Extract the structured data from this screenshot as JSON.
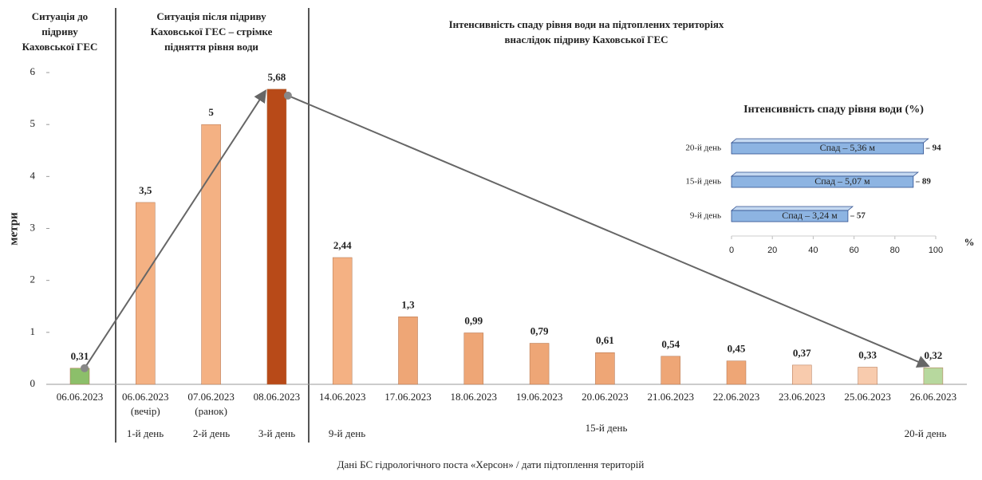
{
  "chart_data": [
    {
      "type": "bar",
      "headers": [
        [
          "Ситуація до",
          "підриву",
          "Каховської ГЕС"
        ],
        [
          "Ситуація після підриву",
          "Каховської ГЕС – стрімке",
          "підняття рівня води"
        ],
        [
          "Інтенсивність спаду рівня води на підтоплених територіях",
          "внаслідок підриву Каховської ГЕС"
        ]
      ],
      "y_label": "метри",
      "x_label": "Дані БС гідрологічного поста «Херсон» / дати підтоплення територій",
      "categories": [
        "06.06.2023",
        "06.06.2023",
        "07.06.2023",
        "08.06.2023",
        "14.06.2023",
        "17.06.2023",
        "18.06.2023",
        "19.06.2023",
        "20.06.2023",
        "21.06.2023",
        "22.06.2023",
        "23.06.2023",
        "25.06.2023",
        "26.06.2023"
      ],
      "category_notes": [
        null,
        "(вечір)",
        "(ранок)",
        null,
        null,
        null,
        null,
        null,
        null,
        null,
        null,
        null,
        null,
        null
      ],
      "day_labels": [
        "1-й день",
        "2-й день",
        "3-й день",
        "9-й день",
        "15-й день",
        "20-й день"
      ],
      "values": [
        0.31,
        3.5,
        5,
        5.68,
        2.44,
        1.3,
        0.99,
        0.79,
        0.61,
        0.54,
        0.45,
        0.37,
        0.33,
        0.32
      ],
      "value_labels": [
        "0,31",
        "3,5",
        "5",
        "5,68",
        "2,44",
        "1,3",
        "0,99",
        "0,79",
        "0,61",
        "0,54",
        "0,45",
        "0,37",
        "0,33",
        "0,32"
      ],
      "colors": [
        "#8cbf6a",
        "#f4b183",
        "#f4b183",
        "#b84a18",
        "#f4b183",
        "#eea676",
        "#eea676",
        "#eea676",
        "#eea676",
        "#eea676",
        "#eea676",
        "#f8cbad",
        "#f8cbad",
        "#b7d89e"
      ],
      "ylim": [
        0,
        6
      ],
      "yticks": [
        0,
        1,
        2,
        3,
        4,
        5,
        6
      ]
    },
    {
      "type": "hbar",
      "title": "Інтенсивність спаду рівня води (%)",
      "categories": [
        "9-й день",
        "15-й день",
        "20-й день"
      ],
      "values": [
        57,
        89,
        94
      ],
      "bar_texts": [
        "Спад – 3,24 м",
        "Спад – 5,07 м",
        "Спад – 5,36 м"
      ],
      "color": "#8db4e2",
      "xlim": [
        0,
        100
      ],
      "xticks": [
        0,
        20,
        40,
        60,
        80,
        100
      ],
      "x_unit": "%"
    }
  ]
}
